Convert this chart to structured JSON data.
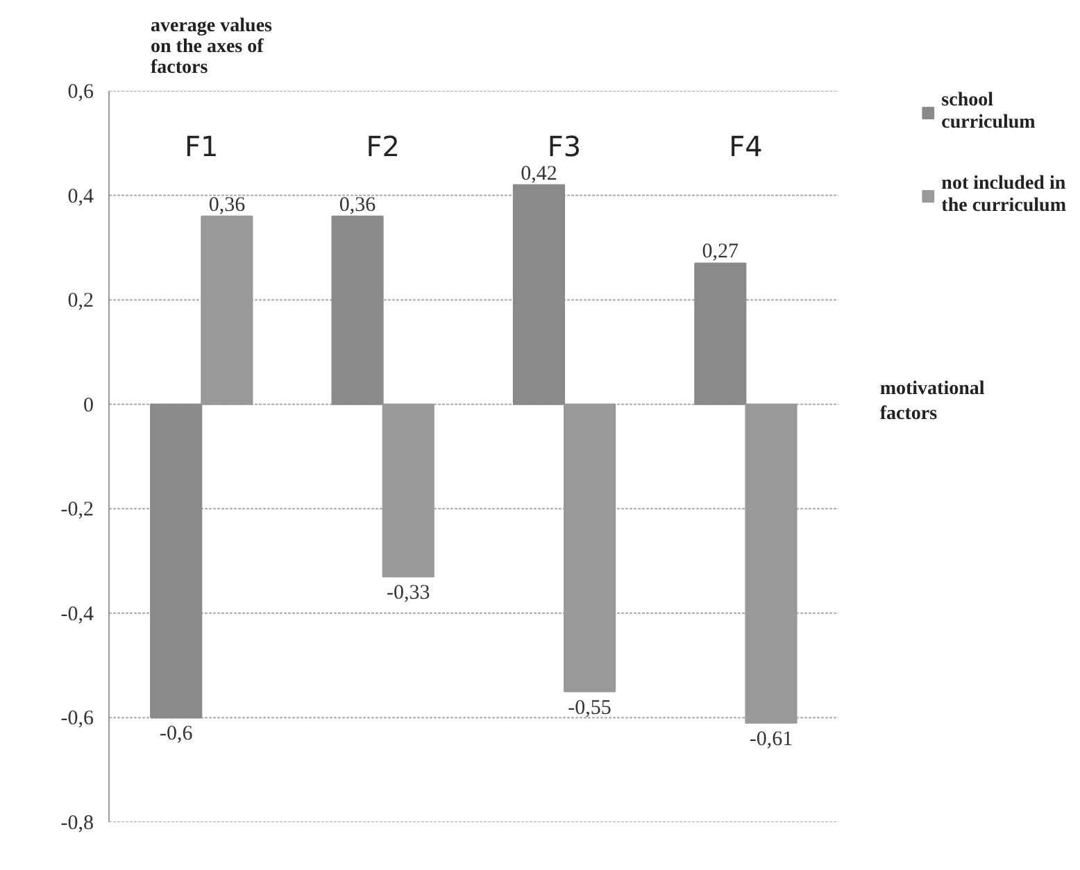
{
  "chart_data": {
    "type": "bar",
    "ylabel": "average values on the axes of factors",
    "xlabel": "motivational factors",
    "categories": [
      "F1",
      "F2",
      "F3",
      "F4"
    ],
    "series": [
      {
        "name": "school curriculum",
        "color": "#8a8a8a",
        "values": [
          -0.6,
          0.36,
          0.42,
          0.27
        ],
        "value_labels": [
          "-0,6",
          "0,36",
          "0,42",
          "0,27"
        ]
      },
      {
        "name": "not included in the curriculum",
        "color": "#999999",
        "values": [
          0.36,
          -0.33,
          -0.55,
          -0.61
        ],
        "value_labels": [
          "0,36",
          "-0,33",
          "-0,55",
          "-0,61"
        ]
      }
    ],
    "ylim": [
      -0.8,
      0.6
    ],
    "yticks": [
      {
        "value": -0.8,
        "label": "-0,8"
      },
      {
        "value": -0.6,
        "label": "-0,6"
      },
      {
        "value": -0.4,
        "label": "-0,4"
      },
      {
        "value": -0.2,
        "label": "-0,2"
      },
      0,
      {
        "value": 0.2,
        "label": "0,2"
      },
      {
        "value": 0.4,
        "label": "0,4"
      },
      {
        "value": 0.6,
        "label": "0,6"
      }
    ],
    "grid": "y",
    "legend": "top right"
  }
}
